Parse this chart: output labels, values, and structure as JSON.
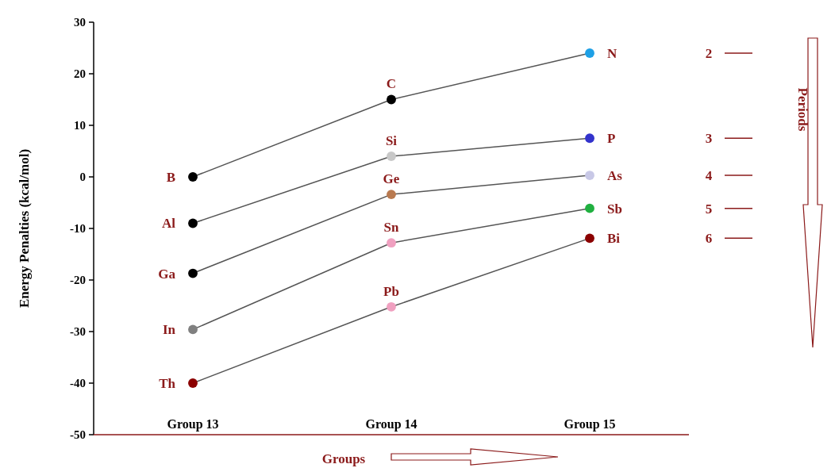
{
  "chart_data": {
    "type": "line",
    "xlabel": "Groups",
    "ylabel": "Energy Penalties (kcal/mol)",
    "categories": [
      "Group 13",
      "Group 14",
      "Group 15"
    ],
    "ylim": [
      -50,
      30
    ],
    "yticks": [
      -50,
      -40,
      -30,
      -20,
      -10,
      0,
      10,
      20,
      30
    ],
    "marker": "circle",
    "series": [
      {
        "name": "2",
        "color": "#555555",
        "colors": [
          "#000000",
          "#000000",
          "#1ea0e6"
        ],
        "values": [
          0,
          15,
          24
        ]
      },
      {
        "name": "3",
        "color": "#555555",
        "colors": [
          "#000000",
          "#c8c8c8",
          "#3333cc"
        ],
        "values": [
          -9,
          4,
          7.5
        ]
      },
      {
        "name": "4",
        "color": "#555555",
        "colors": [
          "#000000",
          "#b97a50",
          "#c8c8e6"
        ],
        "values": [
          -18.7,
          -3.4,
          0.3
        ]
      },
      {
        "name": "5",
        "color": "#555555",
        "colors": [
          "#808080",
          "#f0a0c0",
          "#20b040"
        ],
        "values": [
          -29.6,
          -12.8,
          -6.1
        ]
      },
      {
        "name": "6",
        "color": "#555555",
        "colors": [
          "#8b0000",
          "#f0a0c0",
          "#8b0000"
        ],
        "values": [
          -40,
          -25.2,
          -11.9
        ]
      }
    ],
    "annotations": [
      "Periods",
      {
        "text": "B",
        "x": "Group 13",
        "y": 0
      },
      {
        "text": "C",
        "x": "Group 14",
        "y": 15
      },
      {
        "text": "N",
        "x": "Group 15",
        "y": 24
      },
      {
        "text": "Al",
        "x": "Group 13",
        "y": -9
      },
      {
        "text": "Si",
        "x": "Group 14",
        "y": 4
      },
      {
        "text": "P",
        "x": "Group 15",
        "y": 7.5
      },
      {
        "text": "Ga",
        "x": "Group 13",
        "y": -18.7
      },
      {
        "text": "Ge",
        "x": "Group 14",
        "y": -3.4
      },
      {
        "text": "As",
        "x": "Group 15",
        "y": 0.3
      },
      {
        "text": "In",
        "x": "Group 13",
        "y": -29.6
      },
      {
        "text": "Sn",
        "x": "Group 14",
        "y": -12.8
      },
      {
        "text": "Sb",
        "x": "Group 15",
        "y": -6.1
      },
      {
        "text": "Th",
        "x": "Group 13",
        "y": -40
      },
      {
        "text": "Pb",
        "x": "Group 14",
        "y": -25.2
      },
      {
        "text": "Bi",
        "x": "Group 15",
        "y": -11.9
      }
    ]
  }
}
